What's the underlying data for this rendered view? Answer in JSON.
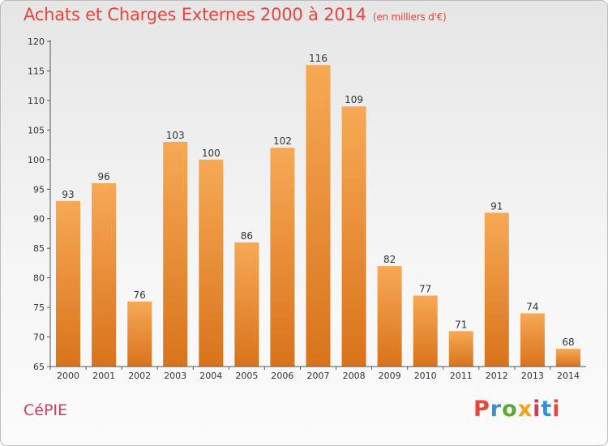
{
  "header": {
    "title": "Achats et Charges Externes 2000 à 2014",
    "subtitle": "(en milliers d'€)"
  },
  "footer": {
    "commune": "CéPIE",
    "logo": "Proxiti",
    "logo_colors": [
      "#e8453c",
      "#3a8fd6",
      "#5aaa3a",
      "#f0a21c",
      "#d53a5b",
      "#3a8fd6",
      "#e8453c"
    ]
  },
  "colors": {
    "title": "#e8453c",
    "bar_light": "#f7a955",
    "bar_dark": "#d9731c",
    "axis": "#555555"
  },
  "chart_data": {
    "type": "bar",
    "title": "Achats et Charges Externes 2000 à 2014",
    "xlabel": "",
    "ylabel": "",
    "categories": [
      "2000",
      "2001",
      "2002",
      "2003",
      "2004",
      "2005",
      "2006",
      "2007",
      "2008",
      "2009",
      "2010",
      "2011",
      "2012",
      "2013",
      "2014"
    ],
    "values": [
      93,
      96,
      76,
      103,
      100,
      86,
      102,
      116,
      109,
      82,
      77,
      71,
      91,
      74,
      68
    ],
    "ylim": [
      65,
      120
    ],
    "yticks": [
      65,
      70,
      75,
      80,
      85,
      90,
      95,
      100,
      105,
      110,
      115,
      120
    ],
    "grid": false,
    "legend": "none",
    "data_labels": true
  }
}
